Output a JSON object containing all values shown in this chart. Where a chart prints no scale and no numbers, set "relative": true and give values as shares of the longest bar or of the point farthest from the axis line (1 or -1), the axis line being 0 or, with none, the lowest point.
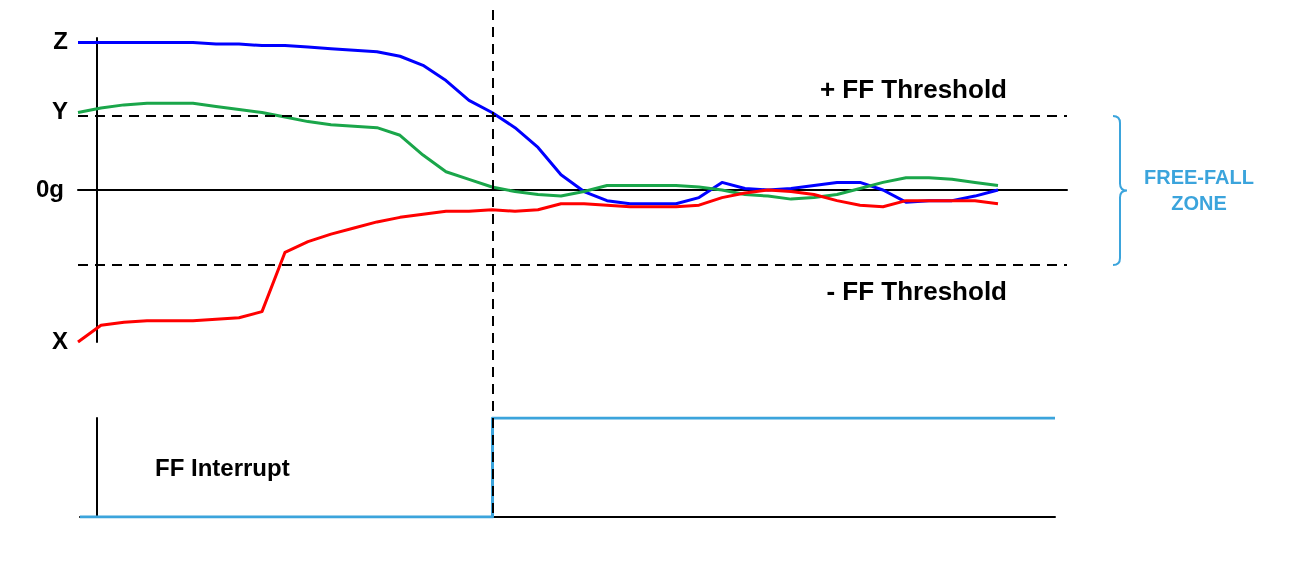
{
  "chart_data": [
    {
      "type": "line",
      "relative": true,
      "marker": "none",
      "grid": false,
      "legend": false,
      "categories": [
        null,
        null,
        null,
        null,
        null,
        null,
        null,
        null,
        null,
        null,
        null,
        null,
        null,
        null,
        null,
        null,
        null,
        null,
        null,
        null,
        null,
        null,
        null,
        null,
        null,
        null,
        null,
        null,
        null,
        null,
        null,
        null,
        null,
        null,
        null,
        null,
        null,
        null,
        null,
        null,
        null,
        null,
        null,
        null
      ],
      "series": [
        {
          "name": "Z",
          "color": "#0000ff",
          "values": [
            0.97,
            0.97,
            0.97,
            0.97,
            0.97,
            0.97,
            0.96,
            0.96,
            0.95,
            0.95,
            0.94,
            0.93,
            0.92,
            0.91,
            0.88,
            0.82,
            0.72,
            0.59,
            0.51,
            0.41,
            0.28,
            0.1,
            -0.01,
            -0.07,
            -0.09,
            -0.09,
            -0.09,
            -0.05,
            0.05,
            0.01,
            0,
            0.01,
            0.03,
            0.05,
            0.05,
            0,
            -0.08,
            -0.07,
            -0.07,
            -0.04,
            0,
            null,
            null,
            null
          ]
        },
        {
          "name": "Y",
          "color": "#1aa64a",
          "values": [
            0.51,
            0.54,
            0.56,
            0.57,
            0.57,
            0.57,
            0.55,
            0.53,
            0.51,
            0.48,
            0.45,
            0.43,
            0.42,
            0.41,
            0.36,
            0.23,
            0.12,
            0.07,
            0.02,
            -0.01,
            -0.03,
            -0.04,
            -0.01,
            0.03,
            0.03,
            0.03,
            0.03,
            0.02,
            0,
            -0.03,
            -0.04,
            -0.06,
            -0.05,
            -0.03,
            0.01,
            0.05,
            0.08,
            0.08,
            0.07,
            0.05,
            0.03,
            null,
            null,
            null
          ]
        },
        {
          "name": "X",
          "color": "#ff0000",
          "values": [
            -1,
            -0.89,
            -0.87,
            -0.86,
            -0.86,
            -0.86,
            -0.85,
            -0.84,
            -0.8,
            -0.41,
            -0.34,
            -0.29,
            -0.25,
            -0.21,
            -0.18,
            -0.16,
            -0.14,
            -0.14,
            -0.13,
            -0.14,
            -0.13,
            -0.09,
            -0.09,
            -0.1,
            -0.11,
            -0.11,
            -0.11,
            -0.1,
            -0.05,
            -0.02,
            0,
            -0.01,
            -0.03,
            -0.07,
            -0.1,
            -0.11,
            -0.07,
            -0.07,
            -0.07,
            -0.07,
            -0.09,
            null,
            null,
            null
          ]
        }
      ],
      "ref_lines": [
        {
          "axis": "y",
          "value": 0.49,
          "label": "+ FF Threshold",
          "color": "#000000",
          "line_style": "dashed"
        },
        {
          "axis": "y",
          "value": -0.49,
          "label": "- FF Threshold",
          "color": "#000000",
          "line_style": "dashed"
        }
      ],
      "annotations": [
        "0g",
        "FREE-FALL ZONE"
      ]
    },
    {
      "type": "step",
      "relative": true,
      "marker": "none",
      "grid": false,
      "legend": false,
      "categories": [
        null,
        null,
        null,
        null,
        null,
        null,
        null,
        null,
        null,
        null,
        null,
        null,
        null,
        null,
        null,
        null,
        null,
        null,
        null,
        null,
        null,
        null,
        null,
        null,
        null,
        null,
        null
      ],
      "series": [
        {
          "name": "FF Interrupt",
          "color": "#3ba4dc",
          "values": [
            0,
            0,
            0,
            0,
            0,
            0,
            0,
            0,
            0,
            0,
            0,
            1,
            1,
            1,
            1,
            1,
            1,
            1,
            1,
            1,
            1,
            1,
            1,
            1,
            1,
            1,
            1
          ]
        }
      ]
    }
  ]
}
